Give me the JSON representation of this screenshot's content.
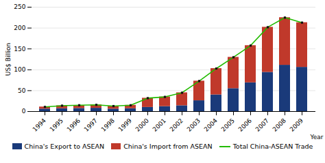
{
  "chart_data": {
    "type": "bar",
    "stacked": true,
    "categories": [
      "1994",
      "1995",
      "1996",
      "1997",
      "1998",
      "1999",
      "2000",
      "2001",
      "2002",
      "2003",
      "2004",
      "2005",
      "2006",
      "2007",
      "2008",
      "2009"
    ],
    "series": [
      {
        "name": "China's Export to ASEAN",
        "type": "bar",
        "color": "#1a3a7a",
        "values": [
          6,
          7,
          7.5,
          8,
          6,
          7,
          10,
          12,
          14,
          26,
          40,
          55,
          69,
          94,
          111,
          106
        ]
      },
      {
        "name": "China's Import from ASEAN",
        "type": "bar",
        "color": "#c0392b",
        "values": [
          5,
          7,
          7,
          8,
          7,
          8,
          22,
          23,
          31,
          47,
          63,
          75,
          89,
          108,
          114,
          107
        ]
      },
      {
        "name": "Total China-ASEAN Trade",
        "type": "line",
        "color": "#22bb00",
        "marker": "square",
        "values": [
          11,
          14,
          15,
          16,
          13,
          15,
          32,
          35,
          45,
          73,
          103,
          130,
          158,
          202,
          225,
          213
        ]
      }
    ],
    "xlabel": "Year",
    "ylabel": "US$ Billion",
    "ylim": [
      0,
      250
    ],
    "yticks": [
      0,
      50,
      100,
      150,
      200,
      250
    ],
    "grid": true,
    "legend": "bottom"
  }
}
